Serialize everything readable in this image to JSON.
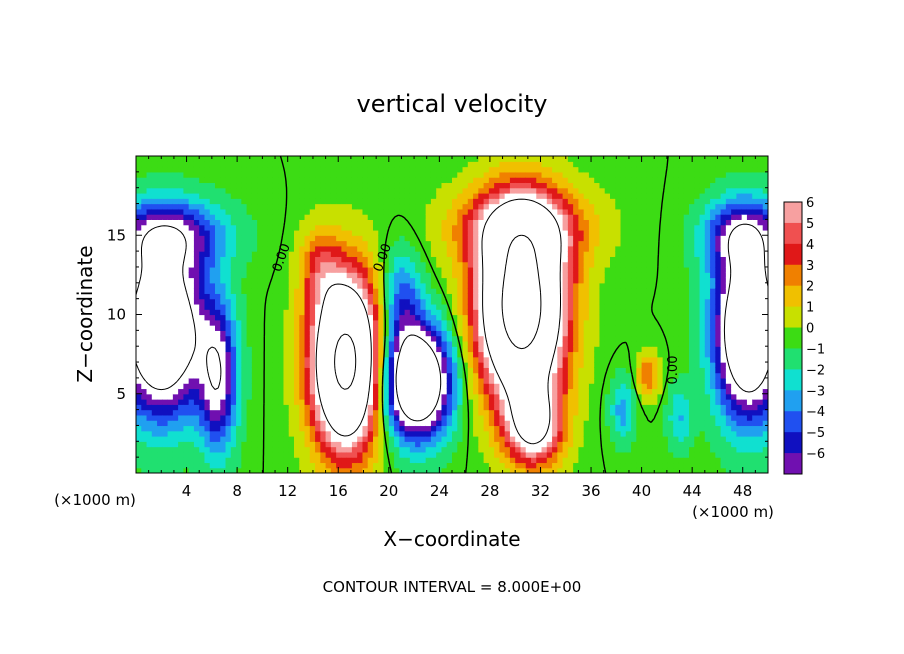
{
  "chart_data": {
    "type": "heatmap",
    "title": "vertical velocity",
    "xlabel": "X−coordinate",
    "ylabel": "Z−coordinate",
    "x_unit_left": "(×1000 m)",
    "x_unit_right": "(×1000 m)",
    "footer": "CONTOUR INTERVAL = 8.000E+00",
    "xlim": [
      0,
      50
    ],
    "ylim": [
      0,
      20
    ],
    "x_ticks": [
      4,
      8,
      12,
      16,
      20,
      24,
      28,
      32,
      36,
      40,
      44,
      48
    ],
    "y_ticks": [
      5,
      10,
      15
    ],
    "colorbar": {
      "levels": [
        6,
        5,
        4,
        3,
        2,
        1,
        0,
        -1,
        -2,
        -3,
        -4,
        -5,
        -6
      ],
      "labels": [
        "6",
        "5",
        "4",
        "3",
        "2",
        "1",
        "0",
        "−1",
        "−2",
        "−3",
        "−4",
        "−5",
        "−6"
      ],
      "colors": [
        "#f7a0a0",
        "#f05050",
        "#e01818",
        "#f08000",
        "#f0c000",
        "#c8e000",
        "#3cdc14",
        "#20e070",
        "#10e0d0",
        "#20a0f0",
        "#2050f0",
        "#1010c0",
        "#7010b0"
      ]
    },
    "contour_labels": [
      {
        "text": "0.00",
        "x": 11.8,
        "y": 13.5,
        "angle": -70
      },
      {
        "text": "0.00",
        "x": 19.8,
        "y": 13.5,
        "angle": -70
      },
      {
        "text": "0.00",
        "x": 42.8,
        "y": 6.5,
        "angle": -90
      }
    ],
    "features": [
      {
        "kind": "updraft",
        "center": [
          16.6,
          6.8
        ],
        "peak": 18
      },
      {
        "kind": "updraft",
        "center": [
          30.5,
          10.5
        ],
        "peak": 20
      },
      {
        "kind": "updraft",
        "center": [
          40.5,
          6.0
        ],
        "peak": 4
      },
      {
        "kind": "downdraft",
        "center": [
          2.0,
          9.0
        ],
        "peak": -14
      },
      {
        "kind": "downdraft",
        "center": [
          22.2,
          5.8
        ],
        "peak": -14
      },
      {
        "kind": "downdraft",
        "center": [
          48.5,
          9.0
        ],
        "peak": -14
      }
    ]
  }
}
